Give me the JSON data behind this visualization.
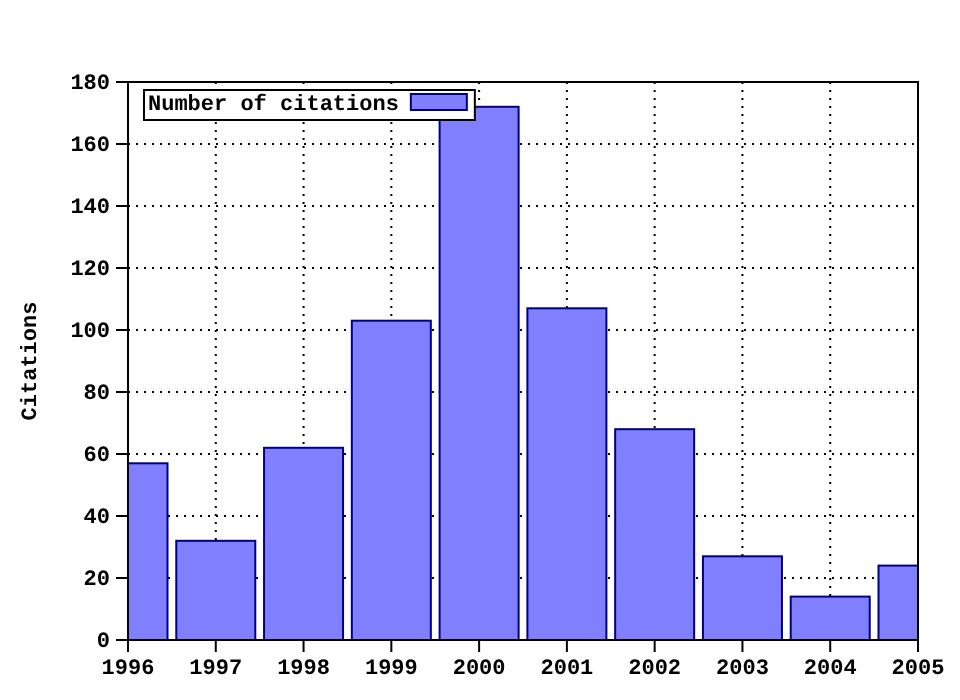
{
  "chart_data": {
    "type": "bar",
    "ylabel": "Citations",
    "x": [
      1996,
      1997,
      1998,
      1999,
      2000,
      2001,
      2002,
      2003,
      2004,
      2005
    ],
    "series": [
      {
        "name": "Number of citations",
        "color": "#8080ff",
        "values": [
          57,
          32,
          62,
          103,
          172,
          107,
          68,
          27,
          14,
          24
        ]
      }
    ],
    "xlim": [
      1996,
      2005
    ],
    "xticks": [
      1996,
      1997,
      1998,
      1999,
      2000,
      2001,
      2002,
      2003,
      2004,
      2005
    ],
    "ylim": [
      0,
      180
    ],
    "yticks": [
      0,
      20,
      40,
      60,
      80,
      100,
      120,
      140,
      160,
      180
    ],
    "grid": true,
    "legend": "top left"
  }
}
